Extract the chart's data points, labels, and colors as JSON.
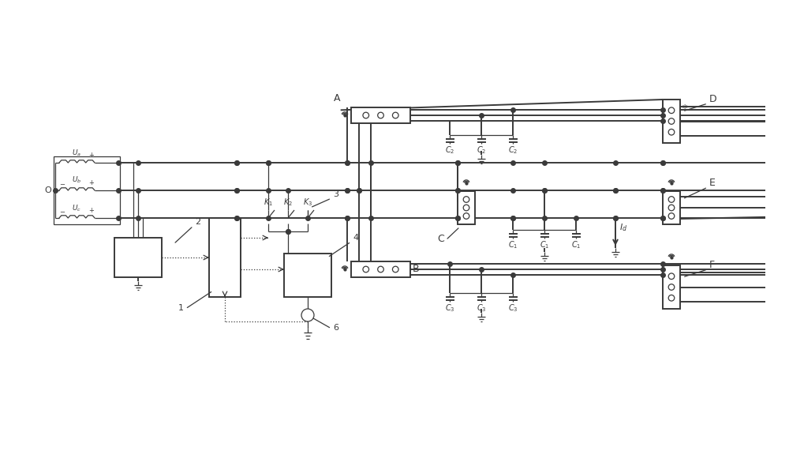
{
  "bg_color": "#ffffff",
  "lc": "#3a3a3a",
  "lw": 1.4,
  "tlw": 0.9,
  "fig_width": 10.0,
  "fig_height": 5.71,
  "dpi": 100,
  "xlim": [
    0,
    100
  ],
  "ylim": [
    0,
    57.1
  ]
}
